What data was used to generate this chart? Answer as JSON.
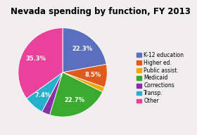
{
  "title": "Nevada spending by function, FY 2013",
  "labels": [
    "K-12 education",
    "Higher ed.",
    "Public assist.",
    "Medicaid",
    "Corrections",
    "Transp.",
    "Other"
  ],
  "values": [
    22.3,
    8.5,
    1.8,
    22.7,
    3.0,
    7.4,
    35.3
  ],
  "colors": [
    "#5b6fbf",
    "#e05a1e",
    "#f0a800",
    "#3aaa2e",
    "#8b2fa8",
    "#27b0cc",
    "#e8429a"
  ],
  "pct_labels": [
    "22.3%",
    "8.5%",
    "",
    "22.7%",
    "",
    "7.4%",
    "35.3%"
  ],
  "title_fontsize": 8.5,
  "legend_fontsize": 6.0,
  "background_color": "#f0eeee"
}
